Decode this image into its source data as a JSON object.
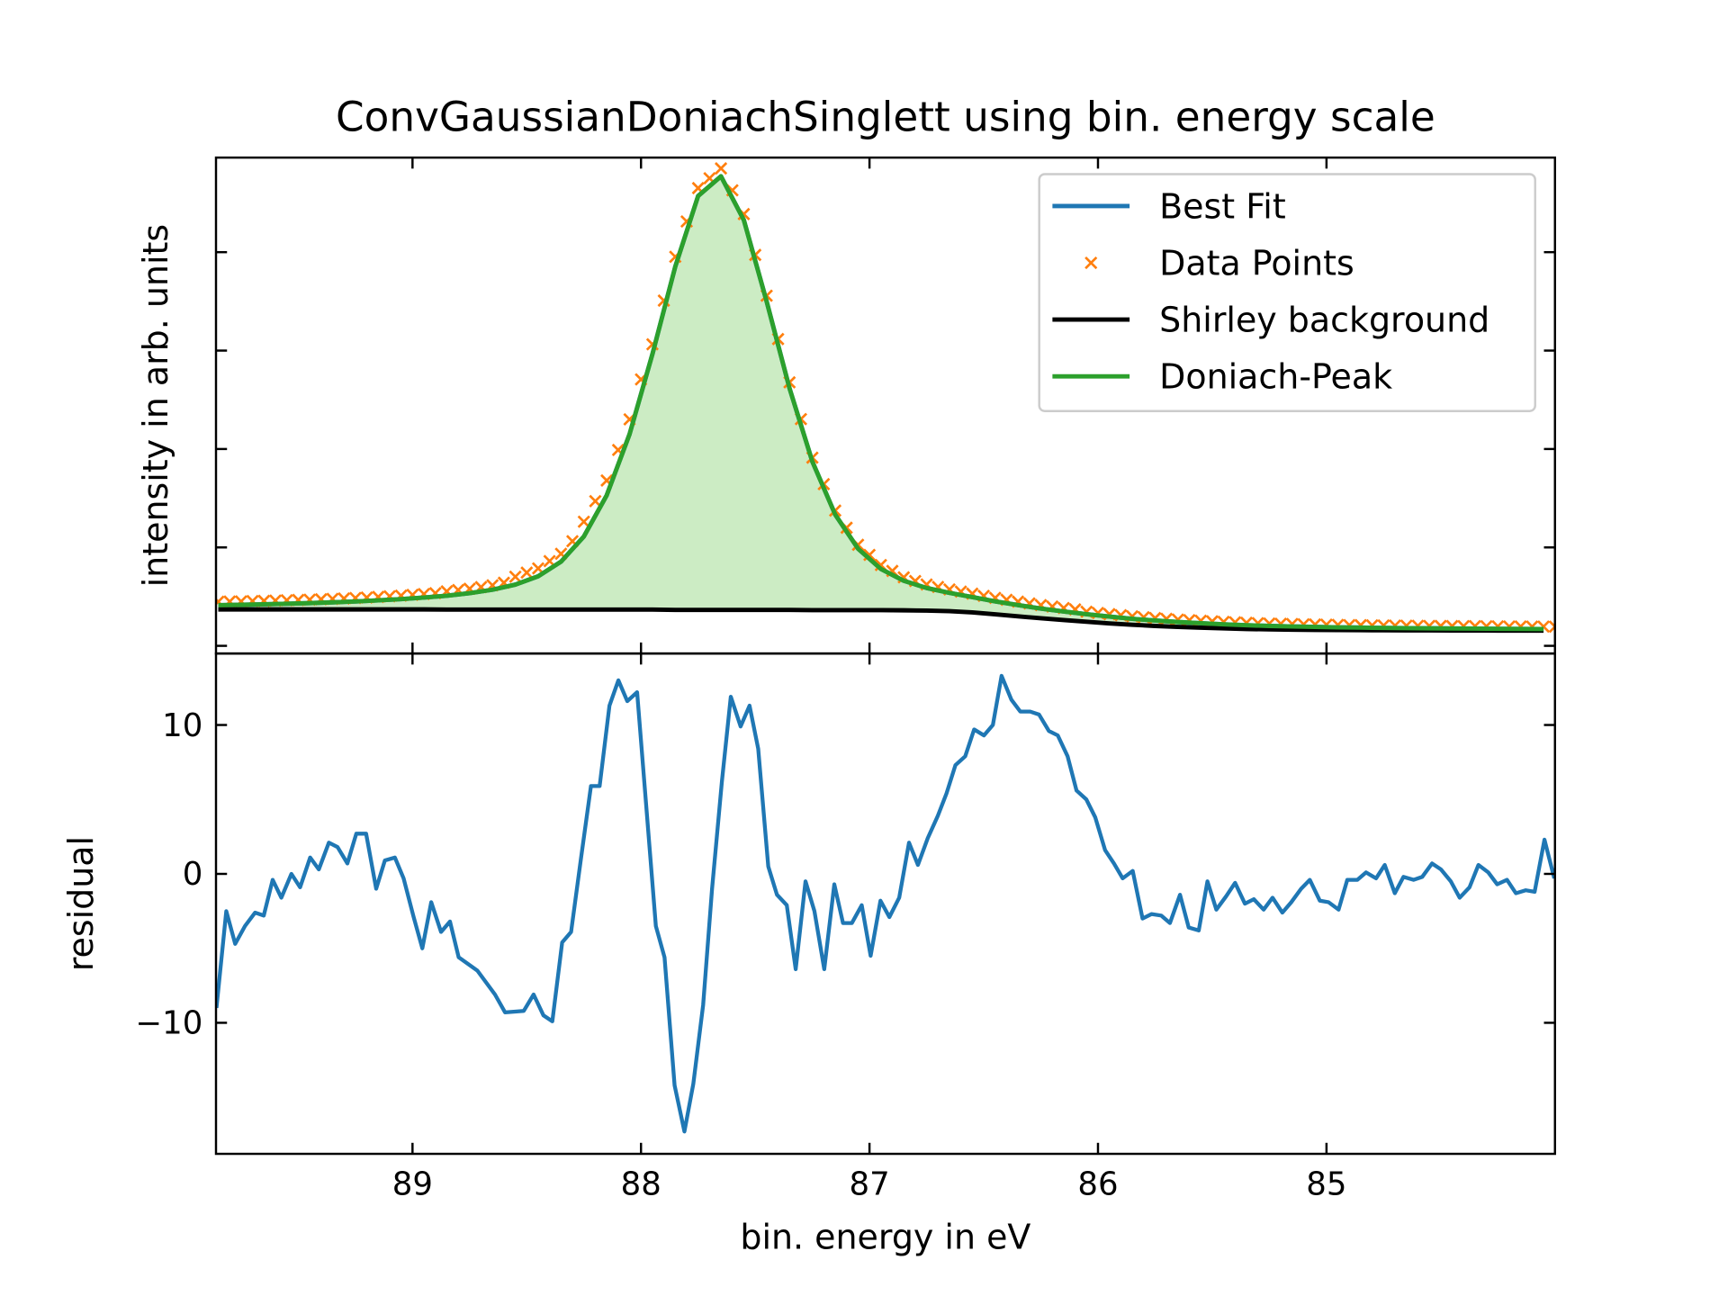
{
  "chart_data": [
    {
      "type": "line",
      "title": "ConvGaussianDoniachSinglett using bin. energy scale",
      "ylabel": "intensity in arb. units",
      "tick_labels": false,
      "legend": "upper right",
      "xlim": [
        89.86,
        84.0
      ],
      "xticks": [
        89,
        88,
        87,
        86,
        85
      ],
      "ylim": [
        -78,
        4961
      ],
      "yticks": [
        0,
        1000,
        2000,
        3000,
        4000
      ],
      "x": [
        89.85,
        89.75,
        89.65,
        89.55,
        89.45,
        89.35,
        89.25,
        89.15,
        89.05,
        88.95,
        88.85,
        88.75,
        88.65,
        88.55,
        88.45,
        88.35,
        88.25,
        88.15,
        88.05,
        87.95,
        87.85,
        87.75,
        87.65,
        87.55,
        87.45,
        87.35,
        87.25,
        87.15,
        87.05,
        86.95,
        86.85,
        86.75,
        86.65,
        86.55,
        86.45,
        86.35,
        86.25,
        86.15,
        86.05,
        85.95,
        85.85,
        85.75,
        85.65,
        85.55,
        85.45,
        85.35,
        85.25,
        85.15,
        85.05,
        84.95,
        84.85,
        84.75,
        84.65,
        84.55,
        84.45,
        84.35,
        84.25,
        84.15,
        84.05
      ],
      "series": [
        {
          "name": "Best Fit",
          "color": "#1f77b4",
          "values": [
            413,
            417,
            422,
            428,
            434,
            442,
            451,
            462,
            475,
            491,
            509,
            535,
            570,
            622,
            707,
            855,
            1111,
            1530,
            2151,
            2964,
            3853,
            4571,
            4771,
            4327,
            3498,
            2617,
            1872,
            1334,
            987,
            781,
            661,
            588,
            538,
            495,
            452,
            414,
            379,
            349,
            322,
            297,
            275,
            257,
            242,
            230,
            219,
            209,
            202,
            197,
            192,
            188,
            185,
            182,
            180,
            178,
            176,
            175,
            173,
            172,
            171
          ]
        },
        {
          "name": "Data Points",
          "color": "#ff7f0e",
          "marker": "x",
          "x": [
            89.85,
            89.8,
            89.75,
            89.7,
            89.65,
            89.6,
            89.55,
            89.5,
            89.45,
            89.4,
            89.35,
            89.3,
            89.25,
            89.2,
            89.15,
            89.1,
            89.05,
            89.0,
            88.95,
            88.9,
            88.85,
            88.8,
            88.75,
            88.7,
            88.65,
            88.6,
            88.55,
            88.5,
            88.45,
            88.4,
            88.35,
            88.3,
            88.25,
            88.2,
            88.15,
            88.1,
            88.05,
            88.0,
            87.95,
            87.9,
            87.85,
            87.8,
            87.75,
            87.7,
            87.65,
            87.6,
            87.55,
            87.5,
            87.45,
            87.4,
            87.35,
            87.3,
            87.25,
            87.2,
            87.15,
            87.1,
            87.05,
            87.0,
            86.95,
            86.9,
            86.85,
            86.8,
            86.75,
            86.7,
            86.65,
            86.6,
            86.55,
            86.5,
            86.45,
            86.4,
            86.35,
            86.3,
            86.25,
            86.2,
            86.15,
            86.1,
            86.05,
            86.0,
            85.95,
            85.9,
            85.85,
            85.8,
            85.75,
            85.7,
            85.65,
            85.6,
            85.55,
            85.5,
            85.45,
            85.4,
            85.35,
            85.3,
            85.25,
            85.2,
            85.15,
            85.1,
            85.05,
            85.0,
            84.95,
            84.9,
            84.85,
            84.8,
            84.75,
            84.7,
            84.65,
            84.6,
            84.55,
            84.5,
            84.45,
            84.4,
            84.35,
            84.3,
            84.25,
            84.2,
            84.15,
            84.1,
            84.05,
            84.0
          ],
          "values": [
            448,
            450,
            452,
            455,
            457,
            460,
            463,
            466,
            469,
            473,
            477,
            481,
            486,
            491,
            497,
            503,
            510,
            518,
            526,
            535,
            554,
            567,
            580,
            597,
            615,
            641,
            702,
            744,
            787,
            861,
            935,
            1063,
            1261,
            1470,
            1680,
            1990,
            2301,
            2707,
            3064,
            3508,
            3953,
            4312,
            4651,
            4751,
            4851,
            4629,
            4387,
            3972,
            3558,
            3117,
            2677,
            2304,
            1912,
            1643,
            1374,
            1200,
            1027,
            924,
            821,
            761,
            696,
            659,
            623,
            598,
            573,
            551,
            530,
            508,
            487,
            468,
            449,
            431,
            414,
            399,
            384,
            370,
            347,
            334,
            322,
            311,
            300,
            291,
            282,
            274,
            267,
            261,
            255,
            249,
            244,
            239,
            234,
            230,
            227,
            224,
            222,
            219,
            217,
            215,
            213,
            211,
            210,
            208,
            207,
            206,
            205,
            204,
            203,
            202,
            201,
            200,
            200,
            199,
            198,
            197,
            197,
            196,
            196,
            195
          ]
        },
        {
          "name": "Shirley background",
          "color": "#000000",
          "values": [
            370,
            370,
            370,
            370,
            370,
            370,
            370,
            370,
            370,
            370,
            368,
            368,
            368,
            368,
            368,
            368,
            368,
            368,
            368,
            368,
            365,
            365,
            365,
            365,
            365,
            365,
            363,
            363,
            363,
            363,
            361,
            358,
            352,
            340,
            320,
            300,
            280,
            262,
            245,
            228,
            214,
            202,
            192,
            184,
            177,
            171,
            167,
            164,
            162,
            160,
            159,
            158,
            157,
            157,
            156,
            156,
            155,
            155,
            155
          ]
        },
        {
          "name": "Doniach-Peak",
          "color": "#2ca02c",
          "fill_color": "#ccecc4",
          "fill_to": "Shirley background",
          "values": [
            413,
            417,
            422,
            428,
            434,
            442,
            451,
            462,
            475,
            491,
            509,
            535,
            570,
            622,
            707,
            855,
            1111,
            1530,
            2151,
            2964,
            3853,
            4571,
            4771,
            4327,
            3498,
            2617,
            1872,
            1334,
            987,
            781,
            661,
            588,
            538,
            495,
            452,
            414,
            379,
            349,
            322,
            297,
            275,
            257,
            242,
            230,
            219,
            209,
            202,
            197,
            192,
            188,
            185,
            182,
            180,
            178,
            176,
            175,
            173,
            172,
            171
          ]
        }
      ]
    },
    {
      "type": "line",
      "ylabel": "residual",
      "xlabel": "bin. energy in eV",
      "xlim": [
        89.86,
        84.0
      ],
      "xticks": [
        89,
        88,
        87,
        86,
        85
      ],
      "ylim": [
        -18.8,
        14.8
      ],
      "yticks": [
        {
          "value": -10,
          "label": "−10"
        },
        0,
        10
      ],
      "x": [
        89.858,
        89.815,
        89.776,
        89.733,
        89.689,
        89.651,
        89.612,
        89.574,
        89.53,
        89.492,
        89.448,
        89.41,
        89.366,
        89.328,
        89.285,
        89.246,
        89.203,
        89.159,
        89.121,
        89.077,
        89.039,
        88.995,
        88.957,
        88.918,
        88.875,
        88.836,
        88.798,
        88.716,
        88.639,
        88.595,
        88.513,
        88.47,
        88.427,
        88.388,
        88.345,
        88.306,
        88.263,
        88.219,
        88.181,
        88.138,
        88.099,
        88.06,
        88.017,
        87.935,
        87.897,
        87.853,
        87.81,
        87.771,
        87.728,
        87.689,
        87.646,
        87.607,
        87.564,
        87.525,
        87.487,
        87.443,
        87.405,
        87.362,
        87.323,
        87.28,
        87.241,
        87.198,
        87.154,
        87.116,
        87.077,
        87.034,
        86.995,
        86.952,
        86.913,
        86.87,
        86.827,
        86.788,
        86.745,
        86.701,
        86.663,
        86.624,
        86.581,
        86.542,
        86.499,
        86.46,
        86.422,
        86.379,
        86.34,
        86.297,
        86.258,
        86.215,
        86.176,
        86.133,
        86.094,
        86.051,
        86.012,
        85.969,
        85.93,
        85.892,
        85.848,
        85.805,
        85.766,
        85.723,
        85.685,
        85.641,
        85.603,
        85.559,
        85.521,
        85.482,
        85.439,
        85.4,
        85.357,
        85.318,
        85.275,
        85.236,
        85.193,
        85.154,
        85.111,
        85.073,
        85.029,
        84.991,
        84.947,
        84.909,
        84.865,
        84.827,
        84.783,
        84.745,
        84.701,
        84.663,
        84.619,
        84.581,
        84.538,
        84.499,
        84.456,
        84.417,
        84.374,
        84.335,
        84.292,
        84.253,
        84.21,
        84.171,
        84.128,
        84.089,
        84.046,
        84.003
      ],
      "series": [
        {
          "color": "#1f77b4",
          "values": [
            -9.0,
            -2.5,
            -4.7,
            -3.5,
            -2.6,
            -2.8,
            -0.4,
            -1.6,
            0,
            -0.9,
            1.1,
            0.3,
            2.1,
            1.8,
            0.7,
            2.7,
            2.7,
            -1.0,
            0.9,
            1.1,
            -0.3,
            -2.9,
            -5.0,
            -1.9,
            -3.9,
            -3.2,
            -5.6,
            -6.5,
            -8.1,
            -9.3,
            -9.2,
            -8.1,
            -9.5,
            -9.9,
            -4.6,
            -3.9,
            1.0,
            5.9,
            5.9,
            11.3,
            13.0,
            11.6,
            12.2,
            -3.5,
            -5.6,
            -14.2,
            -17.3,
            -14.1,
            -8.8,
            -1.0,
            6.2,
            11.9,
            9.9,
            11.3,
            8.4,
            0.5,
            -1.4,
            -2.1,
            -6.4,
            -0.5,
            -2.5,
            -6.4,
            -0.7,
            -3.3,
            -3.3,
            -2.1,
            -5.5,
            -1.8,
            -2.9,
            -1.6,
            2.1,
            0.6,
            2.4,
            3.9,
            5.4,
            7.3,
            7.9,
            9.7,
            9.3,
            10.0,
            13.3,
            11.7,
            10.9,
            10.9,
            10.7,
            9.6,
            9.3,
            7.9,
            5.6,
            5.0,
            3.8,
            1.6,
            0.7,
            -0.3,
            0.2,
            -3.0,
            -2.7,
            -2.8,
            -3.3,
            -1.4,
            -3.6,
            -3.8,
            -0.5,
            -2.4,
            -1.5,
            -0.6,
            -2.0,
            -1.7,
            -2.4,
            -1.6,
            -2.6,
            -1.9,
            -1.0,
            -0.4,
            -1.8,
            -1.9,
            -2.4,
            -0.4,
            -0.4,
            0.1,
            -0.3,
            0.6,
            -1.3,
            -0.2,
            -0.4,
            -0.2,
            0.7,
            0.3,
            -0.5,
            -1.6,
            -0.9,
            0.6,
            0.1,
            -0.7,
            -0.4,
            -1.3,
            -1.1,
            -1.2,
            2.3,
            -0.3
          ]
        }
      ]
    }
  ]
}
